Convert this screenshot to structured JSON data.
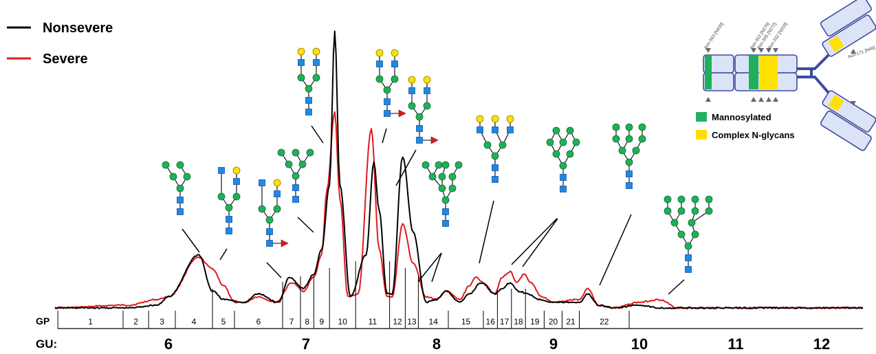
{
  "chart_data": {
    "type": "line",
    "x_unit": "GU",
    "legend": [
      {
        "name": "Nonsevere",
        "color": "#000000"
      },
      {
        "name": "Severe",
        "color": "#e0191b"
      }
    ],
    "legend_position": "top-left",
    "grid": false,
    "xlim": [
      4.0,
      12.6
    ],
    "ylim": [
      0,
      1.0
    ],
    "series": [
      {
        "name": "Nonsevere",
        "color": "#000000",
        "x": [
          4.0,
          5.3,
          5.8,
          6.0,
          6.22,
          6.32,
          6.4,
          6.55,
          6.65,
          6.8,
          6.88,
          6.98,
          7.06,
          7.12,
          7.18,
          7.22,
          7.26,
          7.34,
          7.46,
          7.52,
          7.56,
          7.62,
          7.66,
          7.74,
          7.82,
          7.92,
          8.0,
          8.08,
          8.2,
          8.28,
          8.38,
          8.5,
          8.56,
          8.63,
          8.7,
          8.78,
          8.88,
          9.0,
          9.3,
          9.4,
          9.52,
          9.7,
          10.0,
          10.2,
          10.4,
          10.6,
          12.6
        ],
        "y": [
          0.01,
          0.01,
          0.02,
          0.05,
          0.2,
          0.07,
          0.04,
          0.03,
          0.06,
          0.03,
          0.12,
          0.08,
          0.13,
          0.22,
          0.45,
          1.0,
          0.45,
          0.05,
          0.2,
          0.53,
          0.36,
          0.06,
          0.06,
          0.55,
          0.28,
          0.03,
          0.04,
          0.07,
          0.03,
          0.06,
          0.1,
          0.06,
          0.08,
          0.1,
          0.07,
          0.06,
          0.04,
          0.03,
          0.03,
          0.06,
          0.02,
          0.01,
          0.02,
          0.01,
          0.01,
          0.01,
          0.01
        ]
      },
      {
        "name": "Severe",
        "color": "#e0191b",
        "x": [
          4.0,
          5.3,
          5.8,
          6.0,
          6.22,
          6.32,
          6.4,
          6.48,
          6.55,
          6.65,
          6.78,
          6.9,
          6.98,
          7.06,
          7.12,
          7.16,
          7.22,
          7.26,
          7.32,
          7.4,
          7.5,
          7.56,
          7.62,
          7.66,
          7.74,
          7.82,
          7.92,
          8.0,
          8.08,
          8.2,
          8.28,
          8.34,
          8.4,
          8.5,
          8.56,
          8.63,
          8.68,
          8.75,
          8.8,
          8.9,
          9.0,
          9.3,
          9.4,
          9.52,
          9.7,
          10.0,
          10.2,
          10.4,
          10.6,
          12.6
        ],
        "y": [
          0.01,
          0.02,
          0.04,
          0.05,
          0.19,
          0.15,
          0.09,
          0.03,
          0.03,
          0.05,
          0.03,
          0.1,
          0.07,
          0.12,
          0.2,
          0.43,
          0.71,
          0.4,
          0.05,
          0.06,
          0.65,
          0.22,
          0.05,
          0.05,
          0.31,
          0.17,
          0.05,
          0.04,
          0.07,
          0.04,
          0.09,
          0.12,
          0.1,
          0.06,
          0.12,
          0.14,
          0.1,
          0.13,
          0.1,
          0.05,
          0.03,
          0.04,
          0.08,
          0.02,
          0.01,
          0.03,
          0.04,
          0.01,
          0.01,
          0.01
        ]
      }
    ],
    "gu_ticks": [
      "6",
      "7",
      "8",
      "9",
      "10",
      "11",
      "12"
    ],
    "gu_tick_values": [
      6,
      7,
      8,
      9,
      10,
      11,
      12
    ],
    "gp_peaks": [
      {
        "label": "1",
        "start": 4.05,
        "end": 5.2
      },
      {
        "label": "2",
        "start": 5.2,
        "end": 5.65
      },
      {
        "label": "3",
        "start": 5.65,
        "end": 6.05
      },
      {
        "label": "4",
        "start": 6.05,
        "end": 6.32
      },
      {
        "label": "5",
        "start": 6.32,
        "end": 6.48
      },
      {
        "label": "6",
        "start": 6.48,
        "end": 6.83
      },
      {
        "label": "7",
        "start": 6.83,
        "end": 6.96
      },
      {
        "label": "8",
        "start": 6.96,
        "end": 7.06
      },
      {
        "label": "9",
        "start": 7.06,
        "end": 7.18
      },
      {
        "label": "10",
        "start": 7.18,
        "end": 7.38
      },
      {
        "label": "11",
        "start": 7.38,
        "end": 7.64
      },
      {
        "label": "12",
        "start": 7.64,
        "end": 7.76
      },
      {
        "label": "13",
        "start": 7.76,
        "end": 7.86
      },
      {
        "label": "14",
        "start": 7.86,
        "end": 8.1
      },
      {
        "label": "15",
        "start": 8.1,
        "end": 8.4
      },
      {
        "label": "16",
        "start": 8.4,
        "end": 8.52
      },
      {
        "label": "17",
        "start": 8.52,
        "end": 8.64
      },
      {
        "label": "18",
        "start": 8.64,
        "end": 8.76
      },
      {
        "label": "19",
        "start": 8.76,
        "end": 8.92
      },
      {
        "label": "20",
        "start": 8.92,
        "end": 9.1
      },
      {
        "label": "21",
        "start": 9.1,
        "end": 9.3
      },
      {
        "label": "22",
        "start": 9.3,
        "end": 9.88
      }
    ],
    "axis_row_labels": {
      "gp": "GP",
      "gu": "GU:"
    }
  },
  "inset": {
    "site_labels": [
      "Asn-563 [N439]",
      "Asn-402 [N279]",
      "Asn-395 [N272]",
      "Asn-332 [N209]",
      "Asn-171 [N46]"
    ],
    "legend": [
      {
        "name": "Mannosylated",
        "color": "#23b060"
      },
      {
        "name": "Complex N-glycans",
        "color": "#ffdd00"
      }
    ]
  },
  "colors": {
    "mannose": "#1fb05a",
    "galactose": "#ffe100",
    "glcnac": "#1e88e5",
    "fucose": "#d91e1e",
    "domain_fill": "#dde3f6",
    "domain_stroke": "#3b4aa0"
  }
}
